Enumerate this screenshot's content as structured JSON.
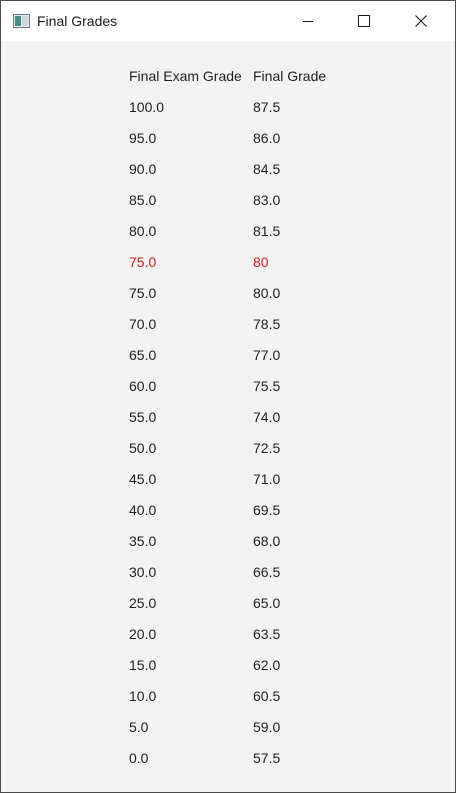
{
  "window": {
    "title": "Final Grades",
    "icon": "window-app-icon",
    "controls": [
      "minimize-icon",
      "maximize-icon",
      "close-icon"
    ]
  },
  "table": {
    "headers": {
      "exam": "Final Exam Grade",
      "final": "Final Grade"
    },
    "highlight_color": "#c8201e",
    "rows": [
      {
        "exam": "100.0",
        "final": "87.5"
      },
      {
        "exam": "95.0",
        "final": "86.0"
      },
      {
        "exam": "90.0",
        "final": "84.5"
      },
      {
        "exam": "85.0",
        "final": "83.0"
      },
      {
        "exam": "80.0",
        "final": "81.5"
      },
      {
        "exam": "75.0",
        "final": "80",
        "highlighted": true
      },
      {
        "exam": "75.0",
        "final": "80.0"
      },
      {
        "exam": "70.0",
        "final": "78.5"
      },
      {
        "exam": "65.0",
        "final": "77.0"
      },
      {
        "exam": "60.0",
        "final": "75.5"
      },
      {
        "exam": "55.0",
        "final": "74.0"
      },
      {
        "exam": "50.0",
        "final": "72.5"
      },
      {
        "exam": "45.0",
        "final": "71.0"
      },
      {
        "exam": "40.0",
        "final": "69.5"
      },
      {
        "exam": "35.0",
        "final": "68.0"
      },
      {
        "exam": "30.0",
        "final": "66.5"
      },
      {
        "exam": "25.0",
        "final": "65.0"
      },
      {
        "exam": "20.0",
        "final": "63.5"
      },
      {
        "exam": "15.0",
        "final": "62.0"
      },
      {
        "exam": "10.0",
        "final": "60.5"
      },
      {
        "exam": "5.0",
        "final": "59.0"
      },
      {
        "exam": "0.0",
        "final": "57.5"
      }
    ]
  }
}
